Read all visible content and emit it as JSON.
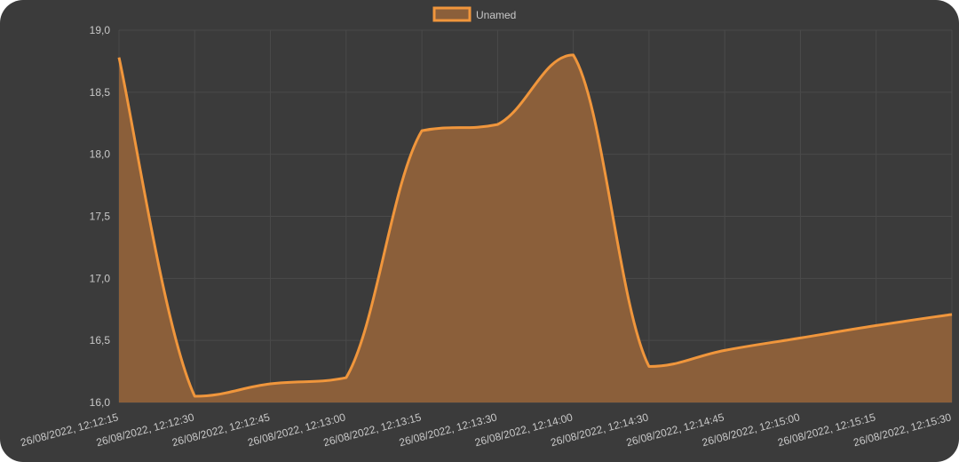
{
  "chart_data": {
    "type": "area",
    "series": [
      {
        "name": "Unamed",
        "color": "#f0963c",
        "fill": "#8b5f3a",
        "values": [
          18.78,
          16.05,
          16.15,
          16.2,
          18.19,
          18.24,
          18.8,
          16.29,
          16.42,
          16.52,
          16.62,
          16.71
        ]
      }
    ],
    "categories": [
      "26/08/2022, 12:12:15",
      "26/08/2022, 12:12:30",
      "26/08/2022, 12:12:45",
      "26/08/2022, 12:13:00",
      "26/08/2022, 12:13:15",
      "26/08/2022, 12:13:30",
      "26/08/2022, 12:14:00",
      "26/08/2022, 12:14:30",
      "26/08/2022, 12:14:45",
      "26/08/2022, 12:15:00",
      "26/08/2022, 12:15:15",
      "26/08/2022, 12:15:30"
    ],
    "yticks": [
      "19,0",
      "18,5",
      "18,0",
      "17,5",
      "17,0",
      "16,5",
      "16,0"
    ],
    "ylim": [
      16.0,
      19.0
    ],
    "grid": true,
    "legend": "top-center",
    "title": "",
    "xlabel": "",
    "ylabel": ""
  },
  "colors": {
    "background": "#3b3b3b",
    "grid": "#4a4a4a",
    "text": "#c8c8c8"
  }
}
